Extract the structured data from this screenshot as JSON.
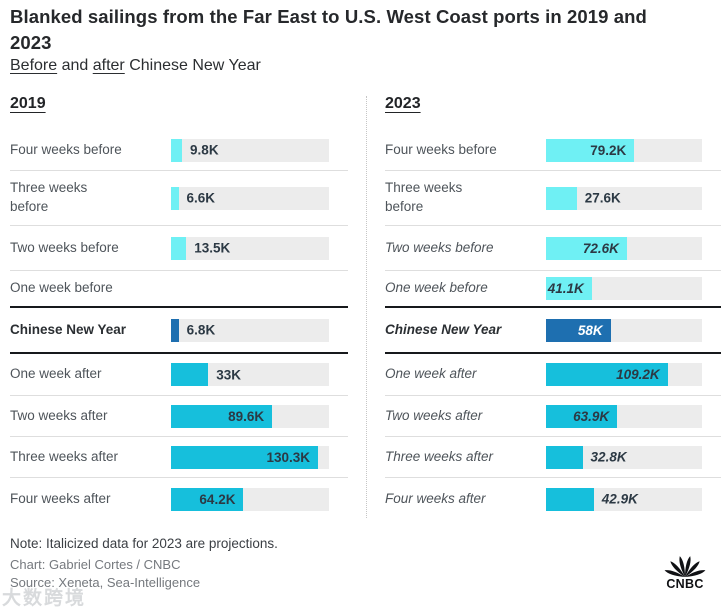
{
  "title": "Blanked sailings from the Far East to U.S. West Coast ports in 2019 and\n2023",
  "subtitle": {
    "word1": "Before",
    "sep1": " and ",
    "word2": "after",
    "rest": " Chinese New Year"
  },
  "colors": {
    "before_bar": "#6FF0F4",
    "after_bar": "#16BFDC",
    "cny_bar": "#1E6FB0",
    "track": "#ECECEC",
    "value_text": "#2C3944",
    "dark_divider": "#17191C",
    "light_divider": "#DEDEDE"
  },
  "chart_data": {
    "type": "bar",
    "title": "Blanked sailings from the Far East to U.S. West Coast ports in 2019 and 2023",
    "subtitle": "Before and after Chinese New Year",
    "orientation": "horizontal",
    "xlim": [
      0,
      140
    ],
    "grid": false,
    "legend": "none",
    "categories": [
      "Four weeks before",
      "Three weeks before",
      "Two weeks before",
      "One week before",
      "Chinese New Year",
      "One week after",
      "Two weeks after",
      "Three weeks after",
      "Four weeks after"
    ],
    "series": [
      {
        "name": "2019",
        "values": [
          9.8,
          6.6,
          13.5,
          null,
          6.8,
          33,
          89.6,
          130.3,
          64.2
        ]
      },
      {
        "name": "2023",
        "values": [
          79.2,
          27.6,
          72.6,
          41.1,
          58,
          109.2,
          63.9,
          32.8,
          42.9
        ]
      }
    ],
    "columns": [
      {
        "year": "2019",
        "rows": [
          {
            "label": "Four weeks before",
            "value": 9.8,
            "display": "9.8K",
            "color": "before",
            "pos": "outside",
            "track": true,
            "divider": "light"
          },
          {
            "label": "Three weeks\nbefore",
            "value": 6.6,
            "display": "6.6K",
            "color": "before",
            "pos": "outside",
            "track": true,
            "divider": "light"
          },
          {
            "label": "Two weeks before",
            "value": 13.5,
            "display": "13.5K",
            "color": "before",
            "pos": "outside",
            "track": true,
            "divider": "light"
          },
          {
            "label": "One week before",
            "value": 0,
            "display": "",
            "color": "before",
            "pos": "none",
            "track": false,
            "divider": "dark"
          },
          {
            "label": "Chinese New Year",
            "value": 6.8,
            "display": "6.8K",
            "color": "cny",
            "pos": "outside",
            "track": true,
            "divider": "dark",
            "bold": true
          },
          {
            "label": "One week after",
            "value": 33,
            "display": "33K",
            "color": "after",
            "pos": "outside",
            "track": true,
            "divider": "light"
          },
          {
            "label": "Two weeks after",
            "value": 89.6,
            "display": "89.6K",
            "color": "after",
            "pos": "inside",
            "track": true,
            "divider": "light"
          },
          {
            "label": "Three weeks after",
            "value": 130.3,
            "display": "130.3K",
            "color": "after",
            "pos": "inside",
            "track": true,
            "divider": "light"
          },
          {
            "label": "Four weeks after",
            "value": 64.2,
            "display": "64.2K",
            "color": "after",
            "pos": "inside",
            "track": true,
            "divider": "none"
          }
        ]
      },
      {
        "year": "2023",
        "rows": [
          {
            "label": "Four weeks before",
            "value": 79.2,
            "display": "79.2K",
            "color": "before",
            "pos": "inside",
            "track": true,
            "divider": "light"
          },
          {
            "label": "Three weeks\nbefore",
            "value": 27.6,
            "display": "27.6K",
            "color": "before",
            "pos": "outside",
            "track": true,
            "divider": "light"
          },
          {
            "label": "Two weeks before",
            "value": 72.6,
            "display": "72.6K",
            "color": "before",
            "pos": "inside",
            "track": true,
            "divider": "light",
            "italic": true
          },
          {
            "label": "One week before",
            "value": 41.1,
            "display": "41.1K",
            "color": "before",
            "pos": "inside",
            "track": true,
            "divider": "dark",
            "italic": true
          },
          {
            "label": "Chinese New Year",
            "value": 58,
            "display": "58K",
            "color": "cny",
            "pos": "inside",
            "track": true,
            "divider": "dark",
            "italic": true,
            "bold": true,
            "white": true
          },
          {
            "label": "One week after",
            "value": 109.2,
            "display": "109.2K",
            "color": "after",
            "pos": "inside",
            "track": true,
            "divider": "light",
            "italic": true
          },
          {
            "label": "Two weeks after",
            "value": 63.9,
            "display": "63.9K",
            "color": "after",
            "pos": "inside",
            "track": true,
            "divider": "light",
            "italic": true
          },
          {
            "label": "Three weeks after",
            "value": 32.8,
            "display": "32.8K",
            "color": "after",
            "pos": "outside",
            "track": true,
            "divider": "light",
            "italic": true
          },
          {
            "label": "Four weeks after",
            "value": 42.9,
            "display": "42.9K",
            "color": "after",
            "pos": "outside",
            "track": true,
            "divider": "none",
            "italic": true
          }
        ]
      }
    ]
  },
  "footer": {
    "note": "Note: Italicized data for 2023 are projections.",
    "chart_credit": "Chart: Gabriel Cortes / CNBC",
    "source": "Source: Xeneta, Sea-Intelligence",
    "watermark": "大数跨境"
  },
  "logo": {
    "name": "CNBC",
    "text": "CNBC"
  }
}
